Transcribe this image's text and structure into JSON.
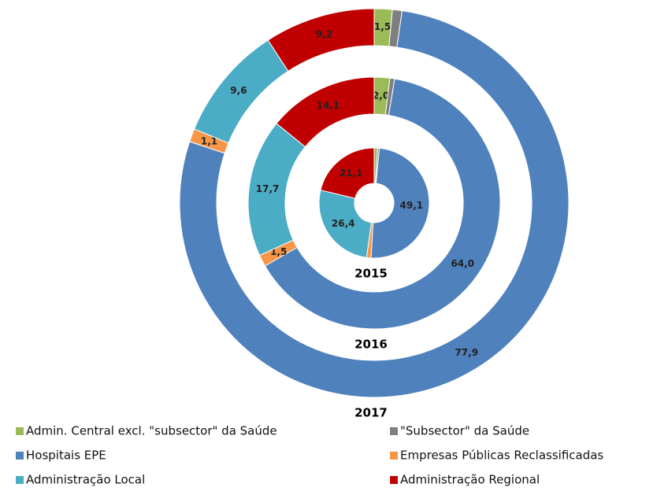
{
  "chart_data": {
    "type": "donut",
    "categories": [
      "Admin. Central excl. \"subsector\" da Saúde",
      "\"Subsector\" da Saúde",
      "Hospitais EPE",
      "Empresas Públicas Reclassificadas",
      "Administração Local",
      "Administração Regional"
    ],
    "colors": [
      "#9bbb59",
      "#7f7f7f",
      "#4f81bd",
      "#f79646",
      "#4bacc6",
      "#c00000"
    ],
    "series": [
      {
        "name": "2015",
        "values": [
          1.0,
          0.5,
          49.1,
          1.3,
          26.4,
          21.1
        ],
        "value_labels": [
          null,
          null,
          "49,1",
          null,
          "26,4",
          "21,1"
        ]
      },
      {
        "name": "2016",
        "values": [
          2.0,
          0.6,
          64.0,
          1.5,
          17.7,
          14.1
        ],
        "value_labels": [
          "2,0",
          null,
          "64,0",
          "1,5",
          "17,7",
          "14,1"
        ]
      },
      {
        "name": "2017",
        "values": [
          1.5,
          0.8,
          77.9,
          1.1,
          9.6,
          9.2
        ],
        "value_labels": [
          "1,5",
          null,
          "77,9",
          "1,1",
          "9,6",
          "9,2"
        ]
      }
    ]
  }
}
